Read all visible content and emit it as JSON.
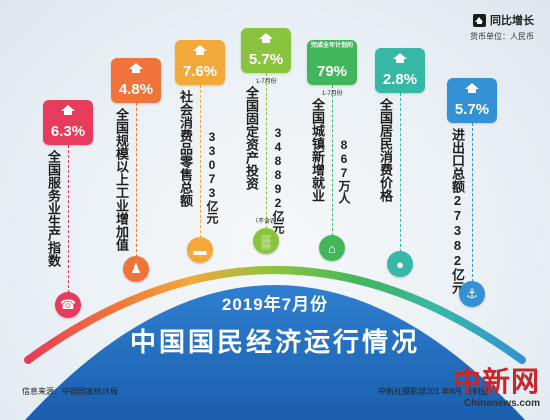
{
  "legend": {
    "label": "同比增长",
    "unit": "货币单位：人民币"
  },
  "chart_data": {
    "type": "bar",
    "title": "中国国民经济运行情况",
    "subtitle": "2019年7月份",
    "items": [
      {
        "name": "全国服务业生产指数",
        "growth": "6.3%",
        "color": "#e63b5a",
        "icon": "headset-icon",
        "amount": "",
        "extra": ""
      },
      {
        "name": "全国规模以上工业增加值",
        "growth": "4.8%",
        "color": "#f0743a",
        "icon": "worker-icon",
        "amount": "",
        "extra": ""
      },
      {
        "name": "社会消费品零售总额",
        "growth": "7.6%",
        "color": "#f2a93a",
        "icon": "card-icon",
        "amount": "33073亿元",
        "extra": ""
      },
      {
        "name": "全国固定资产投资",
        "growth": "5.7%",
        "color": "#8ac43f",
        "icon": "building-icon",
        "amount": "348892亿元",
        "extra": "1-7月份",
        "note": "（不含农户）"
      },
      {
        "name": "全国城镇新增就业",
        "growth": "79%",
        "color": "#42b65a",
        "icon": "factory-icon",
        "amount": "867万人",
        "extra": "1-7月份",
        "badge_note": "完成全年计划的"
      },
      {
        "name": "全国居民消费价格",
        "growth": "2.8%",
        "color": "#37b7a6",
        "icon": "piggybank-icon",
        "amount": "",
        "extra": ""
      },
      {
        "name": "进出口总额27382亿元",
        "growth": "5.7%",
        "color": "#3591d6",
        "icon": "ship-icon",
        "amount": "",
        "extra": ""
      }
    ]
  },
  "footer": {
    "source": "信息来源：中国国家统计局",
    "credit": "中新社摄影部201  年8月  日制图",
    "watermark": "中新网",
    "watermark_site": "Chinanews.com"
  }
}
